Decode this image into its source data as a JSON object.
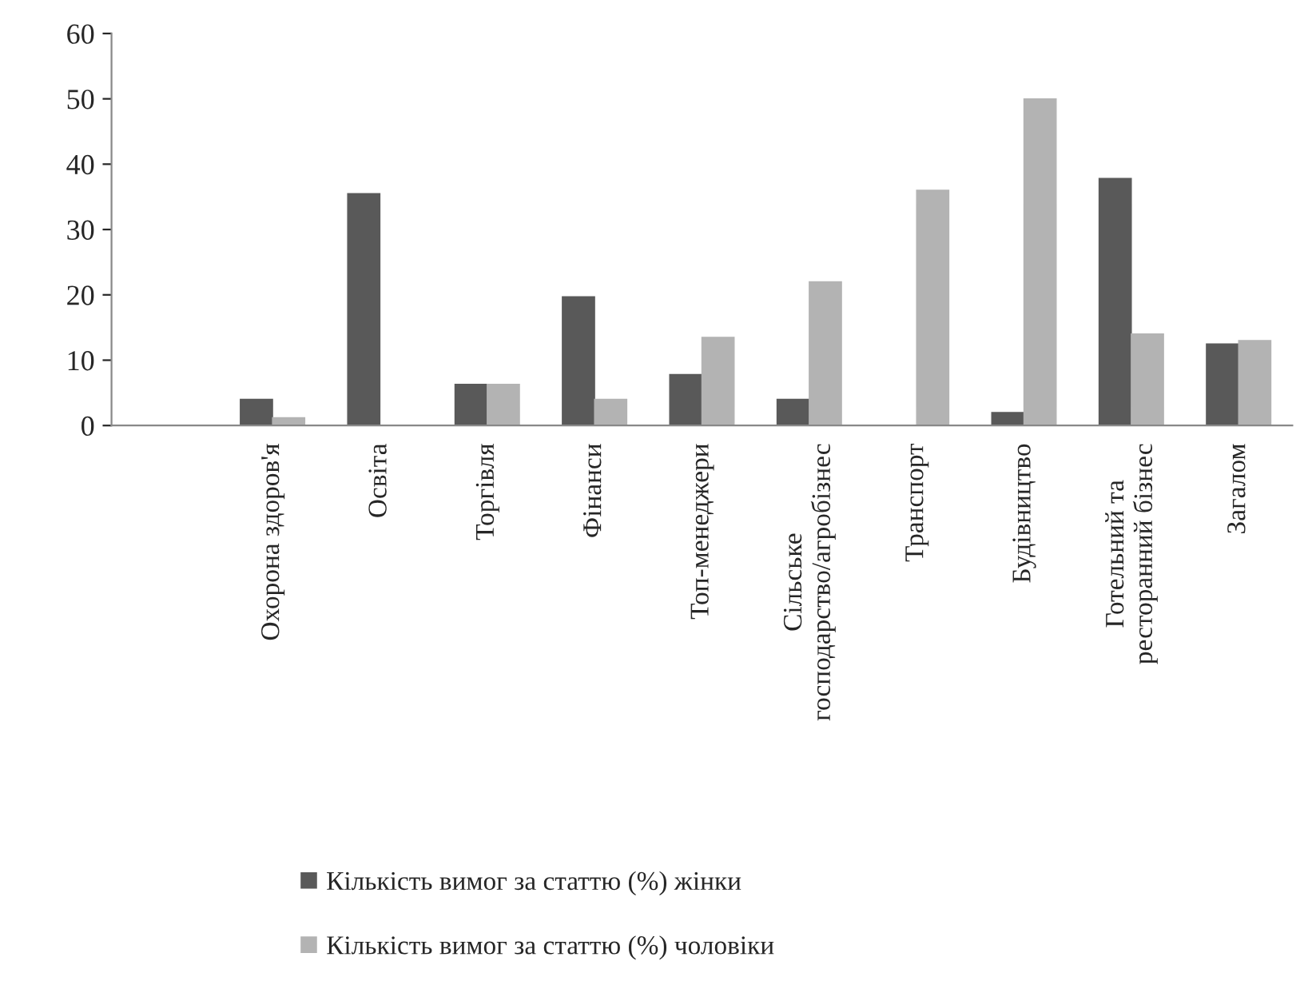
{
  "chart_data": {
    "type": "bar",
    "categories": [
      null,
      "Охорона здоров'я",
      "Освіта",
      "Торгівля",
      "Фінанси",
      "Топ-менеджери",
      "Сільське\nгосподарство/агробізнес",
      "Транспорт",
      "Будівництво",
      "Готельний та\nресторанний бізнес",
      "Загалом"
    ],
    "series": [
      {
        "name": "Кількість вимог за статтю (%) жінки",
        "color": "#595959",
        "values": [
          null,
          4,
          35.5,
          6.3,
          19.7,
          7.8,
          4,
          0,
          2,
          37.8,
          12.5
        ]
      },
      {
        "name": "Кількість вимог за статтю (%) чоловіки",
        "color": "#b3b3b3",
        "values": [
          null,
          1.2,
          0,
          6.3,
          4,
          13.5,
          22,
          36,
          50,
          14,
          13
        ]
      }
    ],
    "ylim": [
      0,
      60
    ],
    "yticks": [
      0,
      10,
      20,
      30,
      40,
      50,
      60
    ],
    "grid": false,
    "legend": "bottom"
  }
}
